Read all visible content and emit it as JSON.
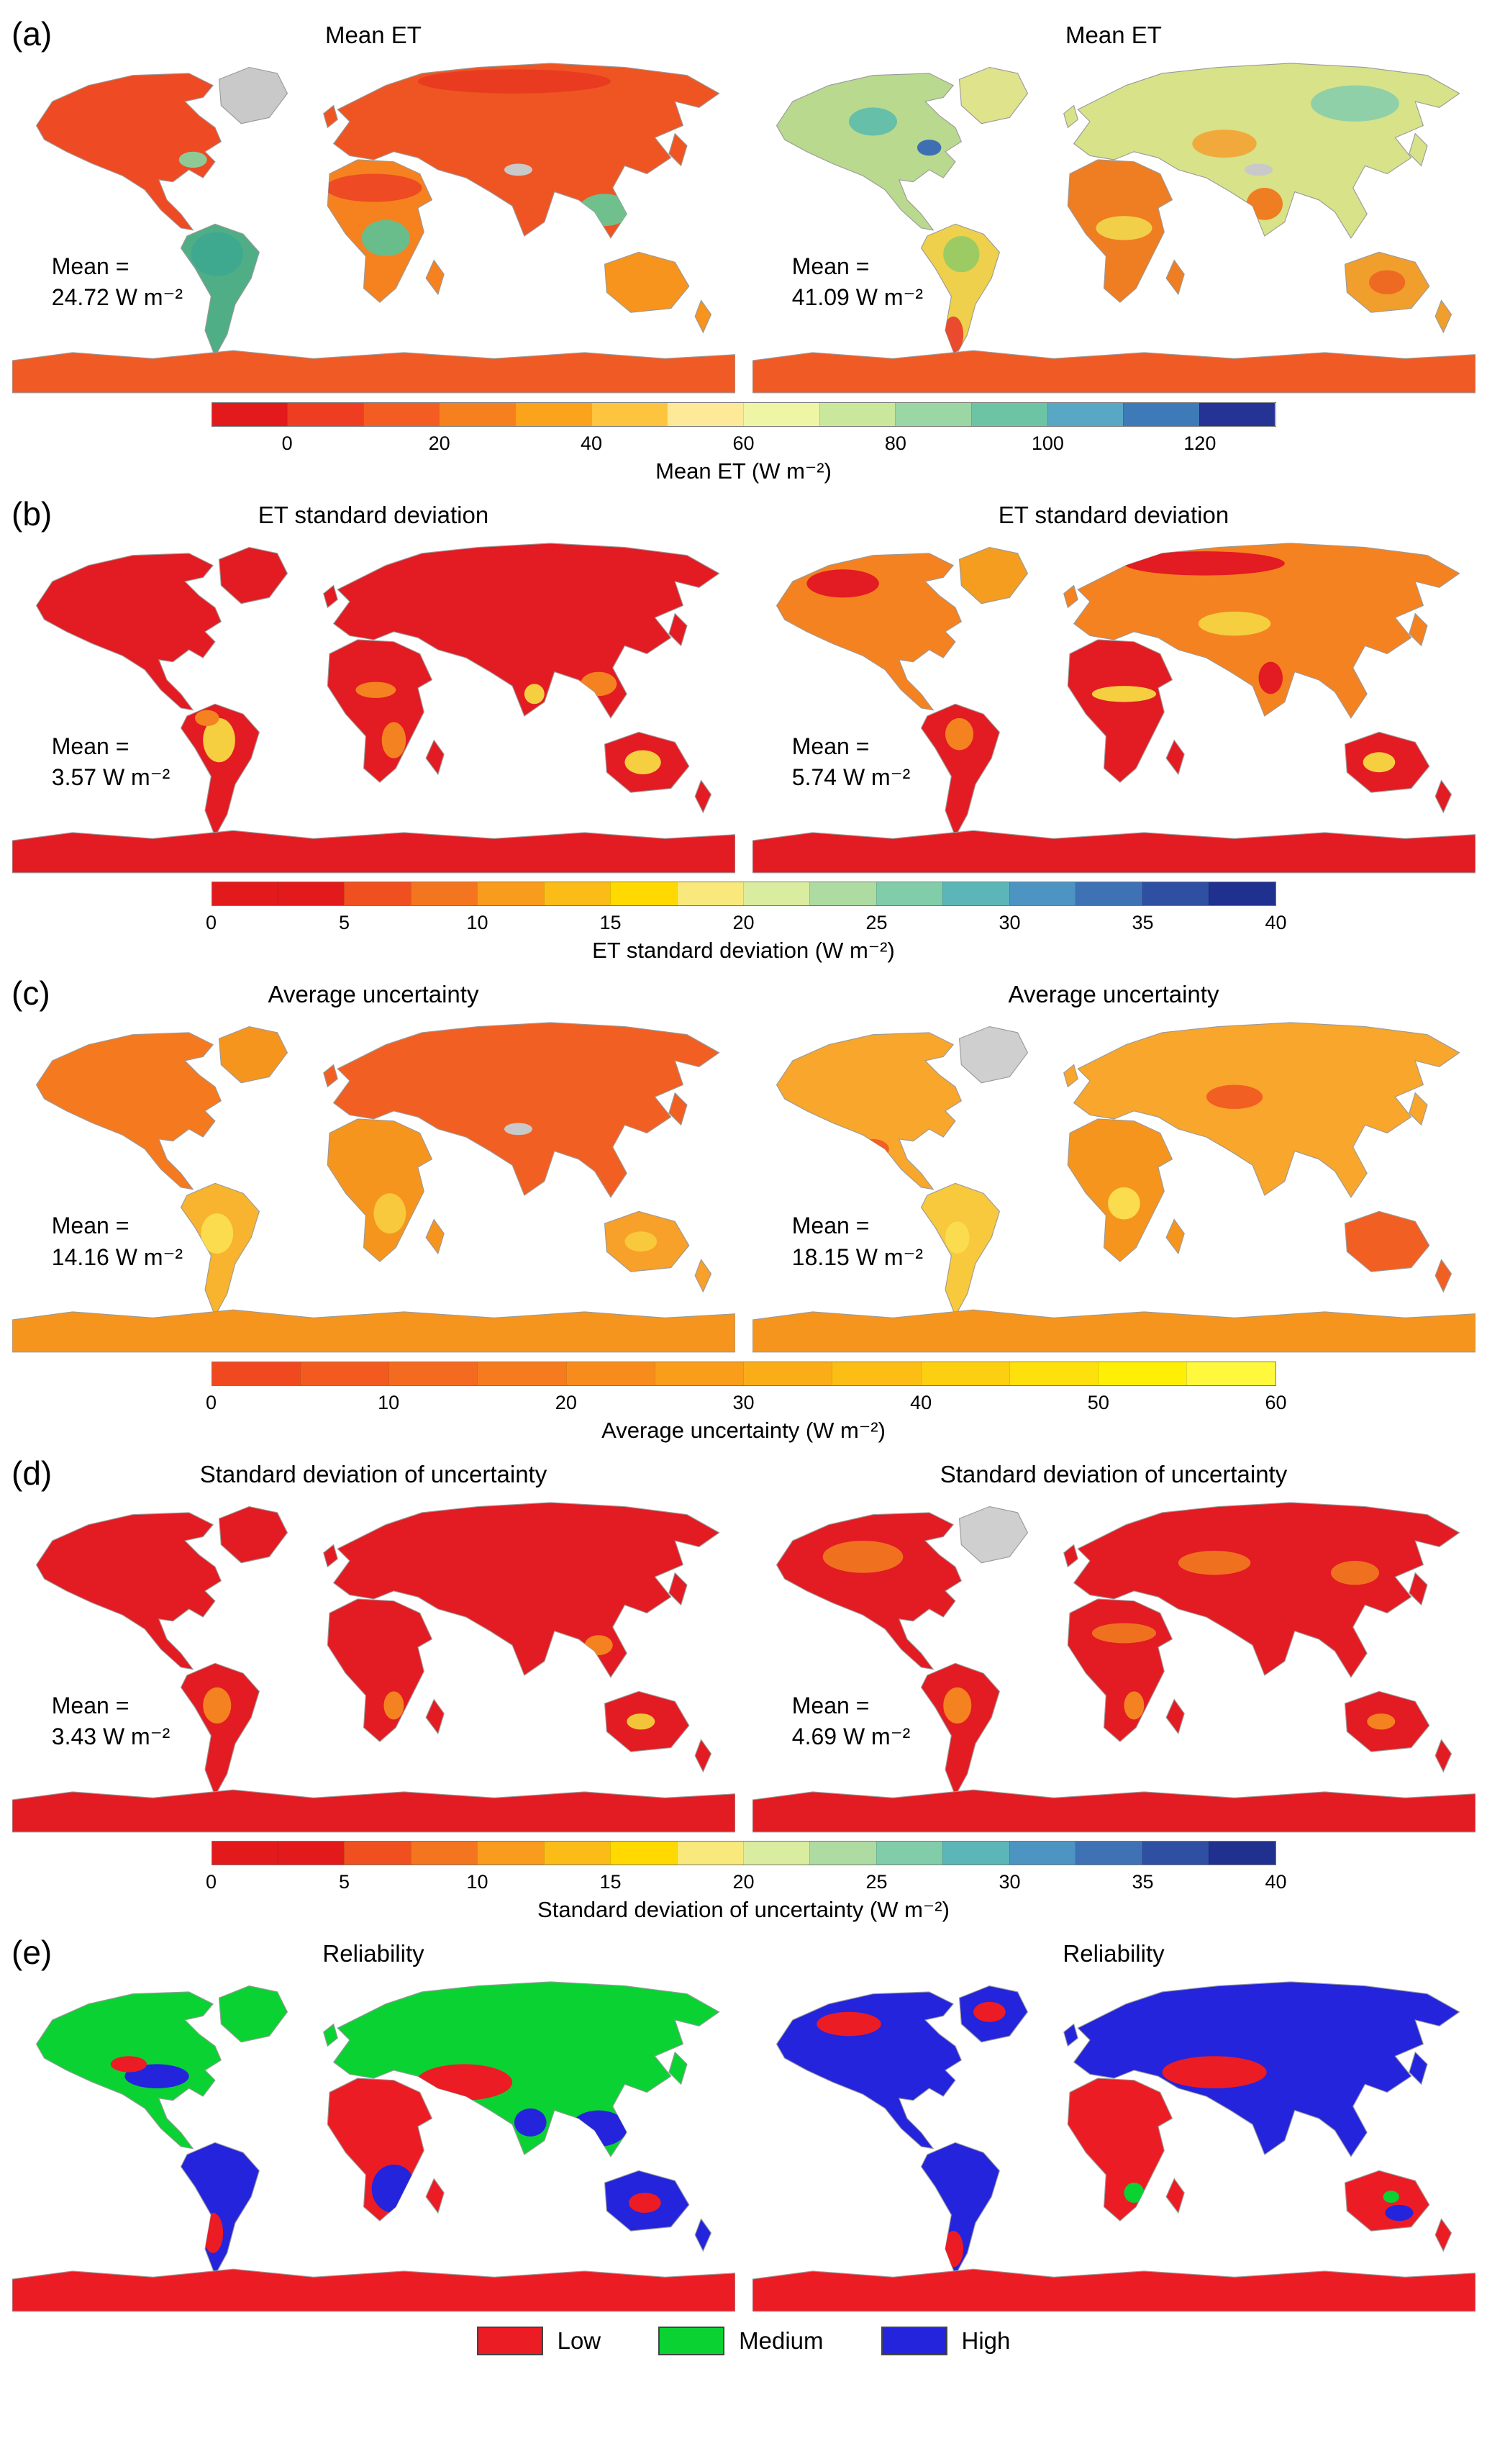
{
  "page": {
    "background": "#ffffff"
  },
  "panels": [
    {
      "id": "a",
      "label": "(a)",
      "maps": [
        {
          "title": "Mean ET",
          "mean_label": "Mean =",
          "mean_value": "24.72 W m⁻²",
          "regions": {
            "greenland": "#c9c9c9",
            "namerica": "#ee4a23",
            "samerica": "#4fae85",
            "africa": "#f5821f",
            "eurasia": "#ee5523",
            "australia": "#f7941d",
            "antarctica": "#f05a24"
          },
          "patches": [
            [
              180,
              67,
              24,
              7,
              "#ee4a23"
            ],
            [
              186,
              92,
              12,
              9,
              "#69bd8a"
            ],
            [
              102,
              100,
              13,
              11,
              "#3fa98f"
            ],
            [
              295,
              78,
              13,
              8,
              "#6fc08d"
            ],
            [
              250,
              14,
              48,
              6,
              "#e83b20"
            ],
            [
              90,
              53,
              7,
              4,
              "#8fca96"
            ],
            [
              252,
              58,
              7,
              3,
              "#c9c9c9"
            ]
          ]
        },
        {
          "title": "Mean ET",
          "mean_label": "Mean =",
          "mean_value": "41.09 W m⁻²",
          "regions": {
            "greenland": "#dfe48c",
            "namerica": "#b9d98e",
            "samerica": "#eed04c",
            "africa": "#ef7d22",
            "eurasia": "#d8e288",
            "australia": "#f09e2c",
            "antarctica": "#f05a24"
          },
          "patches": [
            [
              60,
              34,
              12,
              7,
              "#66bfa8"
            ],
            [
              88,
              47,
              6,
              4,
              "#3f6fb3"
            ],
            [
              300,
              25,
              22,
              9,
              "#8fd0a8"
            ],
            [
              235,
              45,
              16,
              7,
              "#f2a93c"
            ],
            [
              255,
              75,
              9,
              8,
              "#ef7d22"
            ],
            [
              104,
              100,
              9,
              9,
              "#9ccb63"
            ],
            [
              100,
              140,
              5,
              9,
              "#ea4b2e"
            ],
            [
              185,
              87,
              14,
              6,
              "#f2cf49"
            ],
            [
              316,
              114,
              9,
              6,
              "#ee6a22"
            ],
            [
              252,
              58,
              7,
              3,
              "#c9c9c9"
            ]
          ]
        }
      ],
      "colorbar": {
        "label": "Mean ET (W m⁻²)",
        "ticks": [
          "0",
          "20",
          "40",
          "60",
          "80",
          "100",
          "120"
        ],
        "tick_start": 0.0714,
        "tick_end": 0.9286,
        "colors": [
          "#e31a1c",
          "#ef3d22",
          "#f45d21",
          "#f7801e",
          "#fba31b",
          "#fdc53d",
          "#fee999",
          "#eef5a4",
          "#c9e89b",
          "#9bd7a4",
          "#6cc4a4",
          "#57a7c5",
          "#3f7ab8",
          "#253494"
        ]
      }
    },
    {
      "id": "b",
      "label": "(b)",
      "maps": [
        {
          "title": "ET standard deviation",
          "mean_label": "Mean =",
          "mean_value": "3.57 W m⁻²",
          "regions": {
            "greenland": "#e31b22",
            "namerica": "#e31b22",
            "samerica": "#e31b22",
            "africa": "#e31b22",
            "eurasia": "#e31b22",
            "australia": "#e31b22",
            "antarctica": "#e31b22"
          },
          "patches": [
            [
              103,
              103,
              8,
              11,
              "#f5cf3f"
            ],
            [
              97,
              92,
              6,
              4,
              "#f58220"
            ],
            [
              190,
              103,
              6,
              9,
              "#f58220"
            ],
            [
              181,
              78,
              10,
              4,
              "#f58220"
            ],
            [
              314,
              114,
              9,
              6,
              "#f5cf3f"
            ],
            [
              292,
              75,
              9,
              6,
              "#f58220"
            ],
            [
              260,
              80,
              5,
              5,
              "#f5cf3f"
            ]
          ]
        },
        {
          "title": "ET standard deviation",
          "mean_label": "Mean =",
          "mean_value": "5.74 W m⁻²",
          "regions": {
            "greenland": "#f59d1f",
            "namerica": "#f58220",
            "samerica": "#e31b22",
            "africa": "#e31b22",
            "eurasia": "#f58220",
            "australia": "#e31b22",
            "antarctica": "#e31b22"
          },
          "patches": [
            [
              225,
              15,
              40,
              6,
              "#e31b22"
            ],
            [
              45,
              25,
              18,
              7,
              "#e31b22"
            ],
            [
              185,
              80,
              16,
              4,
              "#f5cf3f"
            ],
            [
              240,
              45,
              18,
              6,
              "#f5cf3f"
            ],
            [
              103,
              100,
              7,
              8,
              "#f58220"
            ],
            [
              312,
              114,
              8,
              5,
              "#f5cf3f"
            ],
            [
              258,
              72,
              6,
              8,
              "#e31b22"
            ]
          ]
        }
      ],
      "colorbar": {
        "label": "ET standard deviation (W m⁻²)",
        "ticks": [
          "0",
          "5",
          "10",
          "15",
          "20",
          "25",
          "30",
          "35",
          "40"
        ],
        "tick_start": 0.0,
        "tick_end": 1.0,
        "colors": [
          "#e31a1c",
          "#e31a1c",
          "#f0501f",
          "#f4751f",
          "#f99b1c",
          "#fcbc17",
          "#ffd900",
          "#f9e97d",
          "#daeca0",
          "#aedba2",
          "#82cda9",
          "#5cb6b8",
          "#4e94c3",
          "#3f72b5",
          "#2f4fa3",
          "#20308f"
        ]
      }
    },
    {
      "id": "c",
      "label": "(c)",
      "maps": [
        {
          "title": "Average uncertainty",
          "mean_label": "Mean =",
          "mean_value": "14.16 W m⁻²",
          "regions": {
            "greenland": "#f6951e",
            "namerica": "#f5791f",
            "samerica": "#f8b42e",
            "africa": "#f6951e",
            "eurasia": "#f25f22",
            "australia": "#f7a02a",
            "antarctica": "#f6951e"
          },
          "patches": [
            [
              102,
              110,
              8,
              10,
              "#fadc4e"
            ],
            [
              188,
              100,
              8,
              10,
              "#f8c93c"
            ],
            [
              313,
              114,
              8,
              5,
              "#f8c93c"
            ],
            [
              252,
              58,
              7,
              3,
              "#c9c9c9"
            ]
          ]
        },
        {
          "title": "Average uncertainty",
          "mean_label": "Mean =",
          "mean_value": "18.15 W m⁻²",
          "regions": {
            "greenland": "#cfcfcf",
            "namerica": "#f8a62c",
            "samerica": "#f8c93c",
            "africa": "#f6951e",
            "eurasia": "#f8a62c",
            "australia": "#f25f22",
            "antarctica": "#f6951e"
          },
          "patches": [
            [
              240,
              42,
              14,
              6,
              "#f25f22"
            ],
            [
              185,
              95,
              8,
              8,
              "#fadc4e"
            ],
            [
              102,
              112,
              6,
              8,
              "#fadc4e"
            ],
            [
              60,
              68,
              8,
              5,
              "#f25f22"
            ]
          ]
        }
      ],
      "colorbar": {
        "label": "Average uncertainty (W m⁻²)",
        "ticks": [
          "0",
          "10",
          "20",
          "30",
          "40",
          "50",
          "60"
        ],
        "tick_start": 0.0,
        "tick_end": 1.0,
        "colors": [
          "#f1491f",
          "#f25a20",
          "#f46a20",
          "#f67b1f",
          "#f78c1d",
          "#f99d1b",
          "#fbad18",
          "#fcbe15",
          "#fdcf11",
          "#fee00c",
          "#ffef06",
          "#fff83c"
        ]
      }
    },
    {
      "id": "d",
      "label": "(d)",
      "maps": [
        {
          "title": "Standard deviation of uncertainty",
          "mean_label": "Mean =",
          "mean_value": "3.43 W m⁻²",
          "regions": {
            "greenland": "#e31b22",
            "namerica": "#e31b22",
            "samerica": "#e31b22",
            "africa": "#e31b22",
            "eurasia": "#e31b22",
            "australia": "#e31b22",
            "antarctica": "#e31b22"
          },
          "patches": [
            [
              102,
              106,
              7,
              9,
              "#f58220"
            ],
            [
              190,
              106,
              5,
              7,
              "#f58220"
            ],
            [
              313,
              114,
              7,
              4,
              "#f3c43a"
            ],
            [
              292,
              76,
              7,
              5,
              "#f58220"
            ]
          ]
        },
        {
          "title": "Standard deviation of uncertainty",
          "mean_label": "Mean =",
          "mean_value": "4.69 W m⁻²",
          "regions": {
            "greenland": "#cfcfcf",
            "namerica": "#e31b22",
            "samerica": "#e31b22",
            "africa": "#e31b22",
            "eurasia": "#e31b22",
            "australia": "#e31b22",
            "antarctica": "#e31b22"
          },
          "patches": [
            [
              55,
              32,
              20,
              8,
              "#ef7120"
            ],
            [
              230,
              35,
              18,
              6,
              "#ef7120"
            ],
            [
              300,
              40,
              12,
              6,
              "#ef7120"
            ],
            [
              102,
              106,
              7,
              9,
              "#f58220"
            ],
            [
              185,
              70,
              16,
              5,
              "#ef7120"
            ],
            [
              190,
              106,
              5,
              7,
              "#f58220"
            ],
            [
              313,
              114,
              7,
              4,
              "#f58220"
            ]
          ]
        }
      ],
      "colorbar": {
        "label": "Standard deviation of uncertainty (W m⁻²)",
        "ticks": [
          "0",
          "5",
          "10",
          "15",
          "20",
          "25",
          "30",
          "35",
          "40"
        ],
        "tick_start": 0.0,
        "tick_end": 1.0,
        "colors": [
          "#e31a1c",
          "#e31a1c",
          "#f0501f",
          "#f4751f",
          "#f99b1c",
          "#fcbc17",
          "#ffd900",
          "#f9e97d",
          "#daeca0",
          "#aedba2",
          "#82cda9",
          "#5cb6b8",
          "#4e94c3",
          "#3f72b5",
          "#2f4fa3",
          "#20308f"
        ]
      }
    },
    {
      "id": "e",
      "label": "(e)",
      "maps": [
        {
          "title": "Reliability",
          "regions": {
            "greenland": "#0ad233",
            "namerica": "#0ad233",
            "samerica": "#2424dc",
            "africa": "#ec1c24",
            "eurasia": "#0ad233",
            "australia": "#2424dc",
            "antarctica": "#ec1c24"
          },
          "patches": [
            [
              72,
              52,
              16,
              6,
              "#2424dc"
            ],
            [
              58,
              46,
              9,
              4,
              "#ec1c24"
            ],
            [
              85,
              70,
              8,
              6,
              "#2424dc"
            ],
            [
              100,
              130,
              5,
              10,
              "#ec1c24"
            ],
            [
              190,
              108,
              11,
              12,
              "#2424dc"
            ],
            [
              225,
              55,
              24,
              9,
              "#ec1c24"
            ],
            [
              292,
              78,
              14,
              9,
              "#2424dc"
            ],
            [
              258,
              75,
              8,
              7,
              "#2424dc"
            ],
            [
              315,
              115,
              8,
              5,
              "#ec1c24"
            ]
          ]
        },
        {
          "title": "Reliability",
          "regions": {
            "greenland": "#2424dc",
            "namerica": "#2424dc",
            "samerica": "#2424dc",
            "africa": "#ec1c24",
            "eurasia": "#2424dc",
            "australia": "#ec1c24",
            "antarctica": "#ec1c24"
          },
          "patches": [
            [
              48,
              26,
              16,
              6,
              "#ec1c24"
            ],
            [
              230,
              50,
              26,
              8,
              "#ec1c24"
            ],
            [
              100,
              138,
              5,
              9,
              "#ec1c24"
            ],
            [
              190,
              110,
              5,
              5,
              "#0ad233"
            ],
            [
              322,
              120,
              7,
              4,
              "#2424dc"
            ],
            [
              318,
              112,
              4,
              3,
              "#0ad233"
            ],
            [
              118,
              20,
              8,
              5,
              "#ec1c24"
            ]
          ]
        }
      ],
      "legend": {
        "items": [
          {
            "label": "Low",
            "color": "#ec1c24"
          },
          {
            "label": "Medium",
            "color": "#0ad233"
          },
          {
            "label": "High",
            "color": "#2424dc"
          }
        ]
      }
    }
  ]
}
